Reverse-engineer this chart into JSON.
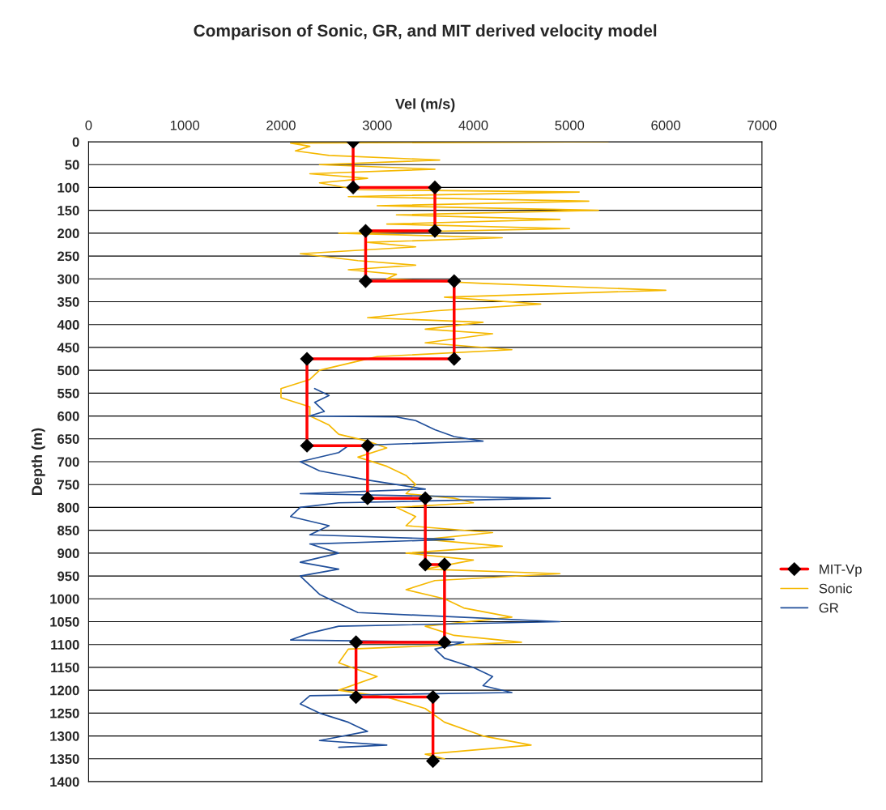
{
  "chart_data": {
    "type": "line",
    "title": "Comparison of Sonic, GR, and MIT derived velocity model",
    "xlabel": "Vel (m/s)",
    "ylabel": "Depth (m)",
    "xlim": [
      0,
      7000
    ],
    "xticks": [
      0,
      1000,
      2000,
      3000,
      4000,
      5000,
      6000,
      7000
    ],
    "ylim": [
      1400,
      0
    ],
    "yticks": [
      0,
      50,
      100,
      150,
      200,
      250,
      300,
      350,
      400,
      450,
      500,
      550,
      600,
      650,
      700,
      750,
      800,
      850,
      900,
      950,
      1000,
      1050,
      1100,
      1150,
      1200,
      1250,
      1300,
      1350,
      1400
    ],
    "grid": "y",
    "legend": "right",
    "series": [
      {
        "name": "MIT-Vp",
        "color": "#ff0000",
        "marker": "diamond",
        "x": [
          2750,
          2750,
          3600,
          3600,
          2880,
          2880,
          3800,
          3800,
          2270,
          2270,
          2900,
          2900,
          3500,
          3500,
          3700,
          3700,
          2780,
          2780,
          3580,
          3580
        ],
        "values": [
          0,
          100,
          100,
          195,
          195,
          305,
          305,
          475,
          475,
          665,
          665,
          780,
          780,
          925,
          925,
          1095,
          1095,
          1215,
          1215,
          1355
        ]
      },
      {
        "name": "Sonic",
        "color": "#f5b800",
        "marker": "none",
        "x": [
          5400,
          2100,
          2300,
          2150,
          2500,
          3650,
          2400,
          3600,
          2300,
          2900,
          2400,
          2800,
          5100,
          2700,
          5200,
          3000,
          5300,
          3200,
          4900,
          3100,
          5000,
          2600,
          4300,
          2900,
          3400,
          2200,
          2800,
          3400,
          2700,
          3200,
          3100,
          4100,
          6000,
          3700,
          4700,
          3600,
          2900,
          4100,
          3500,
          4200,
          3500,
          4400,
          3000,
          2800,
          2400,
          2300,
          2000,
          2000,
          2300,
          2300,
          2500,
          2600,
          2900,
          3100,
          2800,
          3100,
          3300,
          3400,
          3300,
          3800,
          4000,
          3200,
          3400,
          3300,
          4200,
          3500,
          4300,
          3300,
          4000,
          3500,
          4900,
          3600,
          3300,
          3700,
          3900,
          4400,
          3500,
          3800,
          4500,
          2700,
          2600,
          3000,
          2600,
          3100,
          3500,
          3700,
          4100,
          4600,
          3500,
          3700
        ],
        "values": [
          0,
          3,
          10,
          20,
          30,
          40,
          50,
          60,
          70,
          80,
          90,
          105,
          110,
          120,
          130,
          140,
          150,
          160,
          170,
          180,
          190,
          200,
          210,
          220,
          230,
          245,
          260,
          270,
          280,
          290,
          300,
          310,
          325,
          340,
          355,
          370,
          385,
          395,
          410,
          420,
          440,
          455,
          470,
          480,
          500,
          520,
          540,
          560,
          580,
          600,
          620,
          640,
          655,
          670,
          690,
          710,
          730,
          750,
          770,
          780,
          790,
          800,
          820,
          840,
          855,
          870,
          885,
          900,
          915,
          935,
          945,
          960,
          980,
          1000,
          1020,
          1040,
          1060,
          1080,
          1095,
          1110,
          1140,
          1170,
          1200,
          1215,
          1240,
          1270,
          1300,
          1320,
          1340,
          1350
        ]
      },
      {
        "name": "GR",
        "color": "#1f4e9a",
        "marker": "none",
        "x": [
          2350,
          2500,
          2350,
          2450,
          2300,
          3200,
          3400,
          3600,
          3800,
          4100,
          2700,
          2600,
          2200,
          2400,
          2900,
          3500,
          2200,
          4800,
          2600,
          2200,
          2100,
          2500,
          2300,
          3800,
          2300,
          2600,
          2200,
          2600,
          2200,
          2300,
          2400,
          2600,
          2800,
          4900,
          2600,
          2300,
          2100,
          3900,
          3600,
          3700,
          4000,
          4200,
          4100,
          4400,
          2300,
          2200,
          2400,
          2700,
          2900,
          2400,
          3100,
          2600
        ],
        "values": [
          540,
          555,
          570,
          590,
          600,
          602,
          610,
          630,
          645,
          655,
          665,
          680,
          700,
          720,
          740,
          760,
          770,
          780,
          790,
          800,
          820,
          840,
          860,
          870,
          880,
          900,
          920,
          935,
          950,
          970,
          990,
          1010,
          1030,
          1050,
          1060,
          1075,
          1090,
          1095,
          1110,
          1130,
          1150,
          1170,
          1190,
          1205,
          1212,
          1230,
          1250,
          1270,
          1290,
          1310,
          1320,
          1325
        ]
      }
    ]
  }
}
